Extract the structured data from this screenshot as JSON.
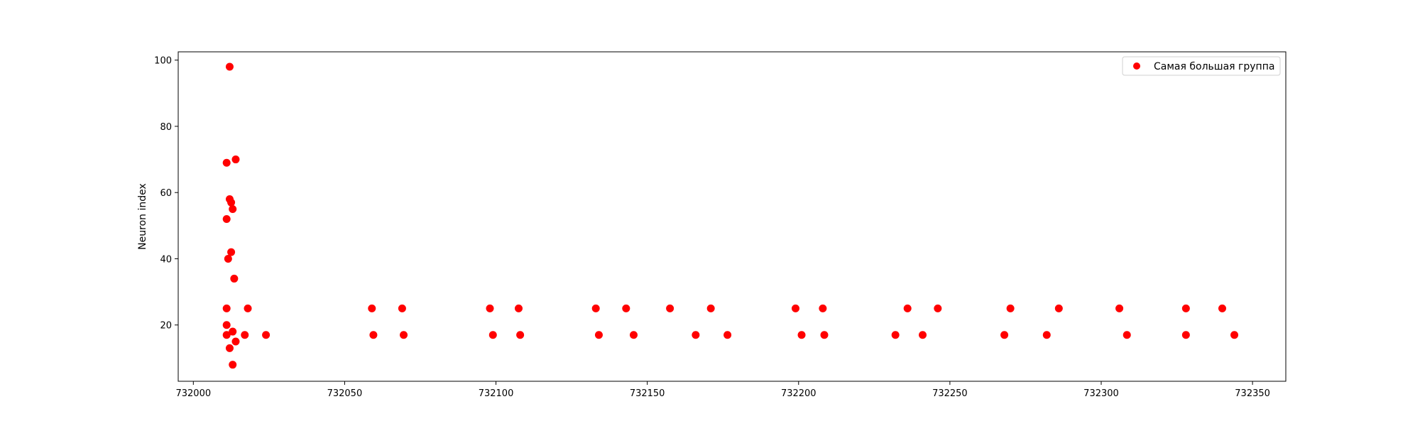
{
  "chart_data": {
    "type": "scatter",
    "title": "",
    "xlabel": "",
    "ylabel": "Neuron index",
    "xlim": [
      731995,
      732361
    ],
    "ylim": [
      3,
      102.5
    ],
    "xticks": [
      732000,
      732050,
      732100,
      732150,
      732200,
      732250,
      732300,
      732350
    ],
    "yticks": [
      20,
      40,
      60,
      80,
      100
    ],
    "grid": false,
    "legend_position": "top-right",
    "series": [
      {
        "name": "Самая большая группа",
        "color": "#ff0000",
        "points": [
          [
            732012,
            98
          ],
          [
            732011,
            69
          ],
          [
            732014,
            70
          ],
          [
            732012,
            58
          ],
          [
            732012.5,
            57
          ],
          [
            732013,
            55
          ],
          [
            732011,
            52
          ],
          [
            732012.5,
            42
          ],
          [
            732011.5,
            40
          ],
          [
            732013.5,
            34
          ],
          [
            732011,
            25
          ],
          [
            732018,
            25
          ],
          [
            732011,
            20
          ],
          [
            732011,
            17
          ],
          [
            732013,
            18
          ],
          [
            732017,
            17
          ],
          [
            732024,
            17
          ],
          [
            732014,
            15
          ],
          [
            732012,
            13
          ],
          [
            732013,
            8
          ],
          [
            732059,
            25
          ],
          [
            732069,
            25
          ],
          [
            732059.5,
            17
          ],
          [
            732069.5,
            17
          ],
          [
            732098,
            25
          ],
          [
            732107.5,
            25
          ],
          [
            732099,
            17
          ],
          [
            732108,
            17
          ],
          [
            732133,
            25
          ],
          [
            732143,
            25
          ],
          [
            732157.5,
            25
          ],
          [
            732171,
            25
          ],
          [
            732134,
            17
          ],
          [
            732145.5,
            17
          ],
          [
            732166,
            17
          ],
          [
            732176.5,
            17
          ],
          [
            732199,
            25
          ],
          [
            732208,
            25
          ],
          [
            732201,
            17
          ],
          [
            732208.5,
            17
          ],
          [
            732236,
            25
          ],
          [
            732246,
            25
          ],
          [
            732232,
            17
          ],
          [
            732241,
            17
          ],
          [
            732270,
            25
          ],
          [
            732286,
            25
          ],
          [
            732268,
            17
          ],
          [
            732282,
            17
          ],
          [
            732306,
            25
          ],
          [
            732328,
            25
          ],
          [
            732340,
            25
          ],
          [
            732308.5,
            17
          ],
          [
            732328,
            17
          ],
          [
            732344,
            17
          ]
        ]
      }
    ]
  }
}
